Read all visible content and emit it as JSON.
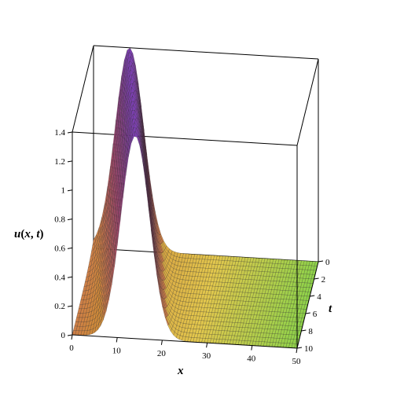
{
  "chart_data": {
    "type": "surface3d",
    "title": "",
    "zlabel": "u(x, t)",
    "zlabel_parts": {
      "fn": "u",
      "open": "(",
      "a1": "x",
      "sep": ", ",
      "a2": "t",
      "close": ")"
    },
    "xlabel": "x",
    "ylabel": "t",
    "xlim": [
      0,
      50
    ],
    "ylim": [
      0,
      10
    ],
    "zlim": [
      0,
      1.4
    ],
    "x_ticks": [
      0,
      10,
      20,
      30,
      40,
      50
    ],
    "y_ticks": [
      0,
      2,
      4,
      6,
      8,
      10
    ],
    "z_ticks": [
      0,
      0.2,
      0.4,
      0.6,
      0.8,
      1,
      1.2,
      1.4
    ],
    "x_tick_labels": [
      "0",
      "10",
      "20",
      "30",
      "40",
      "50"
    ],
    "y_tick_labels": [
      "0",
      "2",
      "4",
      "6",
      "8",
      "10"
    ],
    "z_tick_labels": [
      "0",
      "0.2",
      "0.4",
      "0.6",
      "0.8",
      "1",
      "1.2",
      "1.4"
    ],
    "surface": {
      "description_of_shape": "single travelling hump",
      "peak_value": 1.4,
      "peak_x_at_t0": 8,
      "peak_x_at_t10": 14,
      "approx_half_width_x": 4.5
    },
    "colormap": [
      "#7a3fb0",
      "#c24f7e",
      "#d08a3a",
      "#e3c74d",
      "#8ed24a"
    ],
    "mesh_color": "#1a1a1a",
    "box_color": "#000000"
  }
}
